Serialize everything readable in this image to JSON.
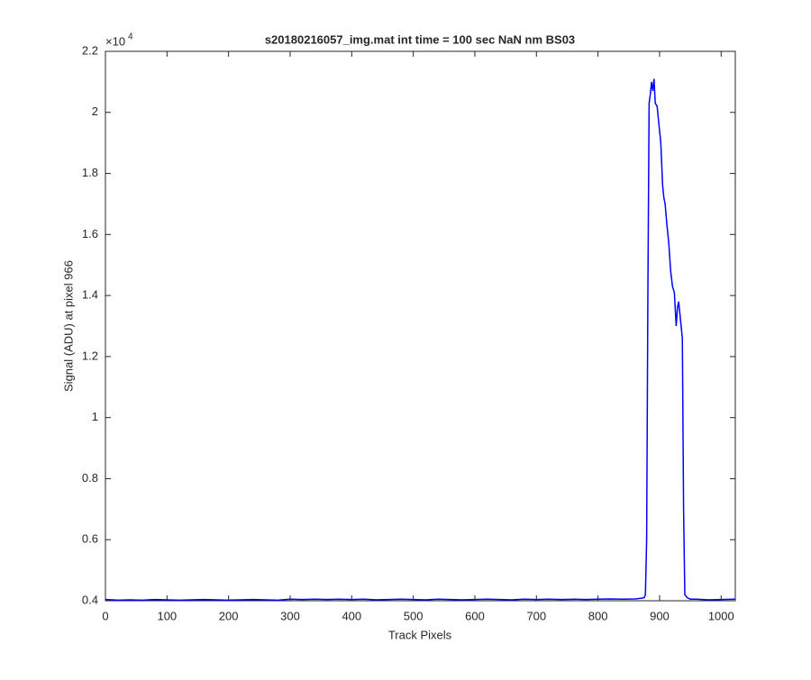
{
  "chart_data": {
    "type": "line",
    "title": "s20180216057_img.mat int time = 100 sec  NaN nm BS03",
    "x_label": "Track Pixels",
    "y_label": "Signal (ADU) at pixel 966",
    "y_exponent": {
      "base": "×10",
      "power": "4"
    },
    "color": "#0000ff",
    "x": [
      0,
      20,
      40,
      60,
      80,
      100,
      120,
      140,
      160,
      180,
      200,
      220,
      240,
      260,
      280,
      300,
      320,
      340,
      360,
      380,
      400,
      420,
      440,
      460,
      480,
      500,
      520,
      540,
      560,
      580,
      600,
      620,
      640,
      660,
      680,
      700,
      720,
      740,
      760,
      780,
      800,
      820,
      840,
      860,
      870,
      875,
      877,
      879,
      881,
      883,
      885,
      887,
      889,
      891,
      893,
      896,
      899,
      902,
      905,
      907,
      909,
      912,
      915,
      918,
      921,
      924,
      927,
      929,
      931,
      933,
      935,
      937,
      939,
      941,
      945,
      950,
      960,
      980,
      1000,
      1023
    ],
    "values": [
      0.404,
      0.402,
      0.403,
      0.402,
      0.404,
      0.403,
      0.402,
      0.403,
      0.404,
      0.403,
      0.402,
      0.403,
      0.404,
      0.403,
      0.402,
      0.405,
      0.404,
      0.405,
      0.404,
      0.405,
      0.404,
      0.405,
      0.403,
      0.404,
      0.405,
      0.404,
      0.403,
      0.405,
      0.404,
      0.403,
      0.404,
      0.405,
      0.404,
      0.403,
      0.405,
      0.404,
      0.405,
      0.404,
      0.405,
      0.404,
      0.405,
      0.406,
      0.405,
      0.406,
      0.408,
      0.41,
      0.42,
      0.6,
      1.4,
      2.03,
      2.06,
      2.1,
      2.07,
      2.11,
      2.03,
      2.02,
      1.96,
      1.9,
      1.76,
      1.72,
      1.7,
      1.63,
      1.57,
      1.48,
      1.43,
      1.41,
      1.3,
      1.36,
      1.38,
      1.34,
      1.3,
      1.26,
      0.7,
      0.42,
      0.41,
      0.405,
      0.405,
      0.403,
      0.404,
      0.405
    ],
    "xlim": [
      0,
      1023
    ],
    "ylim": [
      0.4,
      2.2
    ],
    "xticks": [
      0,
      100,
      200,
      300,
      400,
      500,
      600,
      700,
      800,
      900,
      1000
    ],
    "yticks": [
      0.4,
      0.6,
      0.8,
      1,
      1.2,
      1.4,
      1.6,
      1.8,
      2,
      2.2
    ]
  }
}
